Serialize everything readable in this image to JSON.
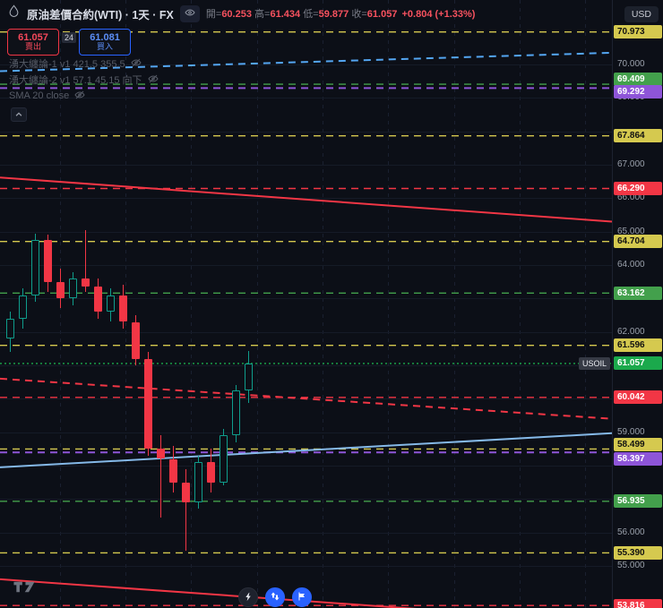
{
  "header": {
    "title": "原油差價合約(WTI) · 1天 · FX",
    "ohlc": {
      "open_label": "開=",
      "open_value": "60.253",
      "high_label": "高=",
      "high_value": "61.434",
      "low_label": "低=",
      "low_value": "59.877",
      "close_label": "收=",
      "close_value": "61.057",
      "change": "+0.804 (+1.33%)"
    },
    "currency": "USD"
  },
  "trade_panel": {
    "sell_price": "61.057",
    "sell_label": "賣出",
    "spread": "24",
    "buy_price": "61.081",
    "buy_label": "買入"
  },
  "legend": [
    {
      "text": "湧大纏論-1 v1 421.5 355.5"
    },
    {
      "text": "湧大纏論-2 v1 57.1 45.15 向下"
    },
    {
      "text": "SMA 20 close"
    }
  ],
  "chart_data": {
    "type": "candlestick",
    "symbol": "USOIL",
    "title": "原油差價合約(WTI)",
    "timeframe": "1天",
    "last_price": 61.057,
    "grid": true,
    "legend_position": "left-top",
    "price_axis": {
      "visible_plain_labels": [
        "70.000",
        "69.000",
        "67.000",
        "66.000",
        "65.000",
        "64.000",
        "62.000",
        "59.000",
        "56.000",
        "55.000"
      ],
      "gridline_prices": [
        55,
        56,
        57,
        58,
        59,
        60,
        61,
        62,
        63,
        64,
        65,
        66,
        67,
        68,
        69,
        70
      ],
      "range": [
        53.5,
        71.2
      ]
    },
    "candles": [
      {
        "o": 61.8,
        "h": 62.6,
        "l": 61.4,
        "c": 62.4
      },
      {
        "o": 62.4,
        "h": 63.3,
        "l": 62.1,
        "c": 63.1
      },
      {
        "o": 63.1,
        "h": 64.95,
        "l": 62.9,
        "c": 64.75
      },
      {
        "o": 64.75,
        "h": 64.9,
        "l": 63.2,
        "c": 63.5
      },
      {
        "o": 63.5,
        "h": 63.9,
        "l": 62.7,
        "c": 63.0
      },
      {
        "o": 63.0,
        "h": 63.8,
        "l": 62.8,
        "c": 63.6
      },
      {
        "o": 63.6,
        "h": 65.05,
        "l": 63.2,
        "c": 63.35
      },
      {
        "o": 63.35,
        "h": 63.6,
        "l": 62.4,
        "c": 62.6
      },
      {
        "o": 62.6,
        "h": 63.3,
        "l": 62.3,
        "c": 63.1
      },
      {
        "o": 63.1,
        "h": 63.4,
        "l": 62.1,
        "c": 62.3
      },
      {
        "o": 62.3,
        "h": 62.5,
        "l": 61.0,
        "c": 61.2
      },
      {
        "o": 61.2,
        "h": 61.4,
        "l": 58.3,
        "c": 58.5
      },
      {
        "o": 58.5,
        "h": 58.9,
        "l": 56.45,
        "c": 58.2
      },
      {
        "o": 58.2,
        "h": 58.6,
        "l": 57.2,
        "c": 57.5
      },
      {
        "o": 57.5,
        "h": 57.9,
        "l": 55.45,
        "c": 56.9
      },
      {
        "o": 56.9,
        "h": 58.3,
        "l": 56.7,
        "c": 58.1
      },
      {
        "o": 58.1,
        "h": 58.5,
        "l": 57.2,
        "c": 57.5
      },
      {
        "o": 57.5,
        "h": 59.1,
        "l": 57.4,
        "c": 58.9
      },
      {
        "o": 58.9,
        "h": 60.4,
        "l": 58.7,
        "c": 60.25
      },
      {
        "o": 60.253,
        "h": 61.434,
        "l": 59.877,
        "c": 61.057
      }
    ],
    "levels": [
      {
        "label": "70.973",
        "price": 70.973,
        "color": "yellow",
        "style": "dashed"
      },
      {
        "label": "69.409",
        "price": 69.409,
        "color": "green",
        "style": "dashed",
        "label_dy": -6
      },
      {
        "label": "69.292",
        "price": 69.292,
        "color": "purple",
        "style": "dashed",
        "label_dy": 4
      },
      {
        "label": "67.864",
        "price": 67.864,
        "color": "yellow",
        "style": "dashed"
      },
      {
        "label": "66.290",
        "price": 66.29,
        "color": "red",
        "style": "dashed"
      },
      {
        "label": "64.704",
        "price": 64.704,
        "color": "yellow",
        "style": "dashed"
      },
      {
        "label": "63.162",
        "price": 63.162,
        "color": "green",
        "style": "dashed"
      },
      {
        "label": "61.596",
        "price": 61.596,
        "color": "yellow",
        "style": "dashed"
      },
      {
        "label": "61.057",
        "price": 61.057,
        "color": "current",
        "style": "dotted",
        "tag": "USOIL"
      },
      {
        "label": "60.042",
        "price": 60.042,
        "color": "red",
        "style": "dashed"
      },
      {
        "label": "58.499",
        "price": 58.499,
        "color": "yellow",
        "style": "dashed",
        "label_dy": -5
      },
      {
        "label": "58.397",
        "price": 58.397,
        "color": "purple",
        "style": "dashed",
        "label_dy": 7
      },
      {
        "label": "56.935",
        "price": 56.935,
        "color": "green",
        "style": "dashed"
      },
      {
        "label": "55.390",
        "price": 55.39,
        "color": "yellow",
        "style": "dashed"
      },
      {
        "label": "53.816",
        "price": 53.816,
        "color": "red",
        "style": "dashed"
      }
    ],
    "trendlines": [
      {
        "x1": 0,
        "p1": 66.62,
        "x2": 1,
        "p2": 65.3,
        "color": "red",
        "style": "solid",
        "width": 2
      },
      {
        "x1": 0,
        "p1": 54.6,
        "x2": 1,
        "p2": 53.3,
        "color": "red",
        "style": "solid",
        "width": 2
      },
      {
        "x1": 0,
        "p1": 60.6,
        "x2": 1,
        "p2": 59.4,
        "color": "red",
        "style": "dashed",
        "width": 2
      },
      {
        "x1": 0,
        "p1": 69.8,
        "x2": 1,
        "p2": 70.35,
        "color": "blue",
        "style": "dashed",
        "width": 2
      },
      {
        "x1": 0,
        "p1": 57.95,
        "x2": 1,
        "p2": 58.97,
        "color": "lightblue",
        "style": "solid",
        "width": 2
      }
    ],
    "colors": {
      "up": "#0f9d8c",
      "down": "#f23645",
      "yellow": "#d5c94f",
      "green": "#43a04c",
      "purple": "#8e55d8",
      "red": "#f23645",
      "blue": "#54a6f2",
      "lightblue": "#85b9e8",
      "current": "#1ba94c",
      "tag_bg": "#363a45",
      "grid": "#1a2030",
      "axis_text": "#9aa0ab"
    }
  },
  "footer": {
    "logo": "TradingView",
    "buttons": [
      {
        "icon": "lightning-icon"
      },
      {
        "icon": "buy-sell-icon"
      },
      {
        "icon": "flag-icon"
      }
    ]
  }
}
